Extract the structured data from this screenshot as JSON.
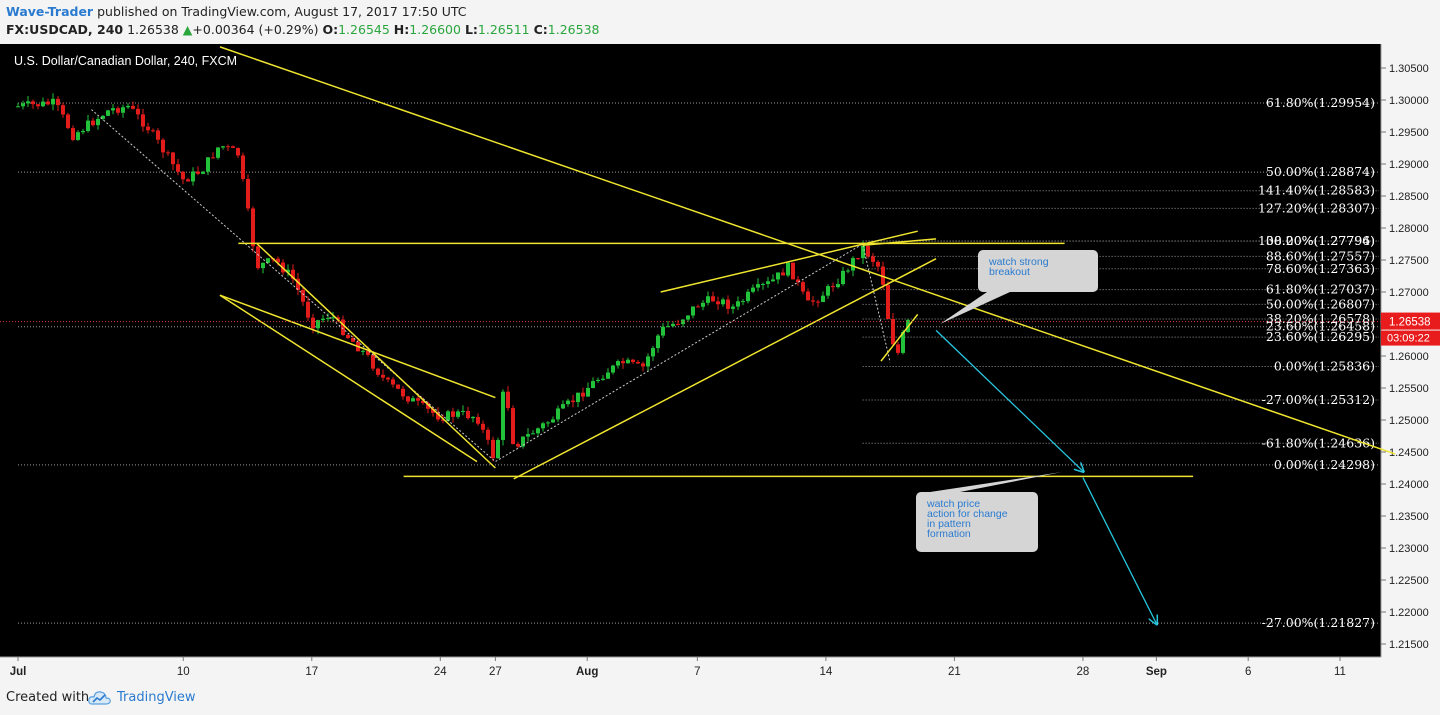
{
  "header": {
    "author": "Wave-Trader",
    "published": "published on TradingView.com, August 17, 2017 17:50 UTC",
    "symbol": "FX:USDCAD, 240",
    "last": "1.26538",
    "arrow": "▲",
    "change": "+0.00364 (+0.29%)",
    "o_label": "O:",
    "o": "1.26545",
    "h_label": "H:",
    "h": "1.26600",
    "l_label": "L:",
    "l": "1.26511",
    "c_label": "C:",
    "c": "1.26538"
  },
  "footer": {
    "created_with": "Created with",
    "brand": "TradingView"
  },
  "colors": {
    "background": "#000000",
    "up_candle": "#22c33a",
    "down_candle": "#e21b1b",
    "trendline": "#f0e52e",
    "arrow": "#27c7e0",
    "fib_line": "#9a9a9a",
    "price_badge": "#e81c1c",
    "callout_bg": "#d5d5d5",
    "callout_text": "#2a7bd0"
  },
  "chart_data": {
    "type": "candlestick",
    "title": "U.S. Dollar/Canadian Dollar, 240, FXCM",
    "ylim": [
      1.2125,
      1.308
    ],
    "y_ticks": [
      "1.30500",
      "1.30000",
      "1.29500",
      "1.29000",
      "1.28500",
      "1.28000",
      "1.27500",
      "1.27000",
      "1.26500",
      "1.26000",
      "1.25500",
      "1.25000",
      "1.24500",
      "1.24000",
      "1.23500",
      "1.23000",
      "1.22500",
      "1.22000",
      "1.21500"
    ],
    "x_ticks": [
      {
        "label": "Jul",
        "date": "2017-07-01",
        "bold": true
      },
      {
        "label": "10",
        "date": "2017-07-10"
      },
      {
        "label": "17",
        "date": "2017-07-17"
      },
      {
        "label": "24",
        "date": "2017-07-24"
      },
      {
        "label": "27",
        "date": "2017-07-27"
      },
      {
        "label": "Aug",
        "date": "2017-08-01",
        "bold": true
      },
      {
        "label": "7",
        "date": "2017-08-07"
      },
      {
        "label": "14",
        "date": "2017-08-14"
      },
      {
        "label": "21",
        "date": "2017-08-21"
      },
      {
        "label": "28",
        "date": "2017-08-28"
      },
      {
        "label": "Sep",
        "date": "2017-09-01",
        "bold": true
      },
      {
        "label": "6",
        "date": "2017-09-06"
      },
      {
        "label": "11",
        "date": "2017-09-11"
      }
    ],
    "price_path": [
      {
        "date": "2017-07-01",
        "price": 1.299
      },
      {
        "date": "2017-07-03",
        "price": 1.2995
      },
      {
        "date": "2017-07-04",
        "price": 1.2945
      },
      {
        "date": "2017-07-06",
        "price": 1.2985
      },
      {
        "date": "2017-07-07",
        "price": 1.299
      },
      {
        "date": "2017-07-08",
        "price": 1.296
      },
      {
        "date": "2017-07-10",
        "price": 1.2875
      },
      {
        "date": "2017-07-11",
        "price": 1.289
      },
      {
        "date": "2017-07-12",
        "price": 1.293
      },
      {
        "date": "2017-07-13",
        "price": 1.2915
      },
      {
        "date": "2017-07-14",
        "price": 1.274
      },
      {
        "date": "2017-07-15",
        "price": 1.275
      },
      {
        "date": "2017-07-16",
        "price": 1.272
      },
      {
        "date": "2017-07-17",
        "price": 1.265
      },
      {
        "date": "2017-07-18",
        "price": 1.2665
      },
      {
        "date": "2017-07-19",
        "price": 1.263
      },
      {
        "date": "2017-07-20",
        "price": 1.26
      },
      {
        "date": "2017-07-21",
        "price": 1.256
      },
      {
        "date": "2017-07-22",
        "price": 1.254
      },
      {
        "date": "2017-07-23",
        "price": 1.252
      },
      {
        "date": "2017-07-24",
        "price": 1.2505
      },
      {
        "date": "2017-07-25",
        "price": 1.251
      },
      {
        "date": "2017-07-26",
        "price": 1.2505
      },
      {
        "date": "2017-07-27",
        "price": 1.2435
      },
      {
        "date": "2017-07-27T12:00",
        "price": 1.256
      },
      {
        "date": "2017-07-28",
        "price": 1.246
      },
      {
        "date": "2017-07-29",
        "price": 1.248
      },
      {
        "date": "2017-07-30",
        "price": 1.25
      },
      {
        "date": "2017-07-31",
        "price": 1.2525
      },
      {
        "date": "2017-08-02",
        "price": 1.2575
      },
      {
        "date": "2017-08-03",
        "price": 1.259
      },
      {
        "date": "2017-08-04",
        "price": 1.258
      },
      {
        "date": "2017-08-05",
        "price": 1.264
      },
      {
        "date": "2017-08-06",
        "price": 1.2655
      },
      {
        "date": "2017-08-07",
        "price": 1.268
      },
      {
        "date": "2017-08-08",
        "price": 1.269
      },
      {
        "date": "2017-08-09",
        "price": 1.2675
      },
      {
        "date": "2017-08-10",
        "price": 1.27
      },
      {
        "date": "2017-08-11",
        "price": 1.2715
      },
      {
        "date": "2017-08-12",
        "price": 1.274
      },
      {
        "date": "2017-08-13",
        "price": 1.268
      },
      {
        "date": "2017-08-14",
        "price": 1.27
      },
      {
        "date": "2017-08-15",
        "price": 1.273
      },
      {
        "date": "2017-08-16",
        "price": 1.277
      },
      {
        "date": "2017-08-17",
        "price": 1.2735
      },
      {
        "date": "2017-08-17T06:00",
        "price": 1.269
      },
      {
        "date": "2017-08-17T12:00",
        "price": 1.2635
      },
      {
        "date": "2017-08-17T18:00",
        "price": 1.2615
      },
      {
        "date": "2017-08-18",
        "price": 1.26
      },
      {
        "date": "2017-08-18T06:00",
        "price": 1.264
      },
      {
        "date": "2017-08-18T12:00",
        "price": 1.2654
      }
    ],
    "fib_levels": [
      {
        "label": "61.80%(1.29954)",
        "price": 1.29954,
        "x_start_date": "2017-07-01"
      },
      {
        "label": "50.00%(1.28874)",
        "price": 1.28874,
        "x_start_date": "2017-07-01"
      },
      {
        "label": "141.40%(1.28583)",
        "price": 1.28583,
        "x_start_date": "2017-08-16"
      },
      {
        "label": "127.20%(1.28307)",
        "price": 1.28307,
        "x_start_date": "2017-08-16"
      },
      {
        "label": "100.00%(1.27796)",
        "price": 1.27796,
        "x_start_date": "2017-08-16"
      },
      {
        "label": "38.20%(1.27794)",
        "price": 1.27794,
        "x_start_date": "2017-08-16"
      },
      {
        "label": "88.60%(1.27557)",
        "price": 1.27557,
        "x_start_date": "2017-08-16"
      },
      {
        "label": "78.60%(1.27363)",
        "price": 1.27363,
        "x_start_date": "2017-08-16"
      },
      {
        "label": "61.80%(1.27037)",
        "price": 1.27037,
        "x_start_date": "2017-08-16"
      },
      {
        "label": "50.00%(1.26807)",
        "price": 1.26807,
        "x_start_date": "2017-08-16"
      },
      {
        "label": "38.20%(1.26578)",
        "price": 1.26578,
        "x_start_date": "2017-08-16"
      },
      {
        "label": "23.60%(1.26458)",
        "price": 1.26458,
        "x_start_date": "2017-07-01"
      },
      {
        "label": "23.60%(1.26295)",
        "price": 1.26295,
        "x_start_date": "2017-08-16"
      },
      {
        "label": "0.00%(1.25836)",
        "price": 1.25836,
        "x_start_date": "2017-08-16"
      },
      {
        "label": "-27.00%(1.25312)",
        "price": 1.25312,
        "x_start_date": "2017-08-16"
      },
      {
        "label": "-61.80%(1.24636)",
        "price": 1.24636,
        "x_start_date": "2017-08-16"
      },
      {
        "label": "0.00%(1.24298)",
        "price": 1.24298,
        "x_start_date": "2017-07-01"
      },
      {
        "label": "-27.00%(1.21827)",
        "price": 1.21827,
        "x_start_date": "2017-07-01"
      }
    ],
    "trendlines": [
      {
        "from": {
          "date": "2017-07-12",
          "price": 1.3083
        },
        "to": {
          "date": "2017-09-14",
          "price": 1.2447
        }
      },
      {
        "from": {
          "date": "2017-07-13",
          "price": 1.2776
        },
        "to": {
          "date": "2017-08-27",
          "price": 1.2776
        }
      },
      {
        "from": {
          "date": "2017-07-14",
          "price": 1.2776
        },
        "to": {
          "date": "2017-07-27",
          "price": 1.2425
        }
      },
      {
        "from": {
          "date": "2017-07-12",
          "price": 1.2695
        },
        "to": {
          "date": "2017-07-26",
          "price": 1.2435
        }
      },
      {
        "from": {
          "date": "2017-07-12",
          "price": 1.2695
        },
        "to": {
          "date": "2017-07-27",
          "price": 1.2535
        }
      },
      {
        "from": {
          "date": "2017-07-22",
          "price": 1.2412
        },
        "to": {
          "date": "2017-09-03",
          "price": 1.2412
        }
      },
      {
        "from": {
          "date": "2017-07-28",
          "price": 1.2408
        },
        "to": {
          "date": "2017-08-20",
          "price": 1.2752
        }
      },
      {
        "from": {
          "date": "2017-08-05",
          "price": 1.27
        },
        "to": {
          "date": "2017-08-19",
          "price": 1.2795
        }
      },
      {
        "from": {
          "date": "2017-08-16",
          "price": 1.2773
        },
        "to": {
          "date": "2017-08-20",
          "price": 1.2783
        }
      },
      {
        "from": {
          "date": "2017-08-17",
          "price": 1.2592
        },
        "to": {
          "date": "2017-08-19",
          "price": 1.2665
        }
      }
    ],
    "dotted_path": [
      {
        "date": "2017-07-05",
        "price": 1.2985
      },
      {
        "date": "2017-07-27",
        "price": 1.2435
      },
      {
        "date": "2017-08-16",
        "price": 1.2775
      },
      {
        "date": "2017-08-17T12:00",
        "price": 1.259
      }
    ],
    "arrows": [
      {
        "from": {
          "date": "2017-08-20",
          "price": 1.264
        },
        "to": {
          "date": "2017-08-28",
          "price": 1.242
        }
      },
      {
        "from": {
          "date": "2017-08-28",
          "price": 1.241
        },
        "to": {
          "date": "2017-09-01",
          "price": 1.2182
        }
      }
    ],
    "callouts": [
      {
        "text": [
          "watch strong",
          "breakout"
        ],
        "anchor": {
          "date": "2017-08-19",
          "price": 1.266
        }
      },
      {
        "text": [
          "watch price",
          "action for change",
          "in pattern",
          "formation"
        ],
        "anchor": {
          "date": "2017-08-27",
          "price": 1.242
        }
      }
    ],
    "current_price": {
      "label": "1.26538",
      "price": 1.26538,
      "countdown": "03:09:22"
    }
  }
}
